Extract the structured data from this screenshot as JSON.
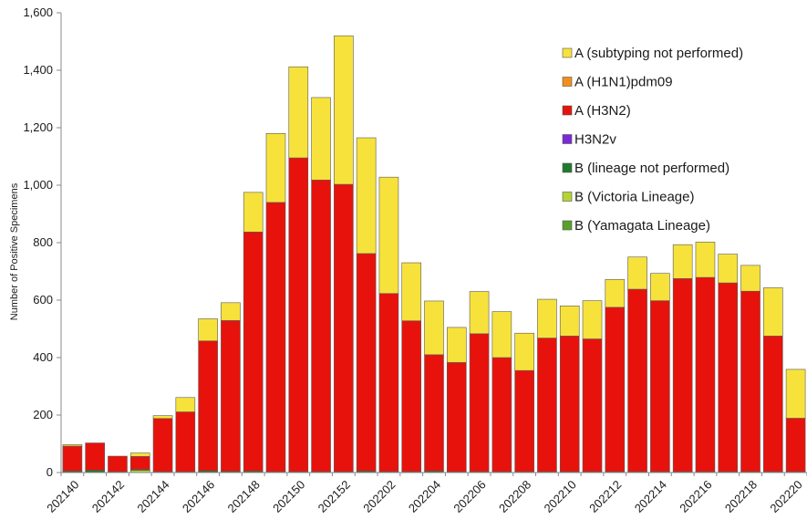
{
  "chart_data": {
    "type": "bar",
    "stacked": true,
    "title": "",
    "xlabel": "",
    "ylabel": "Number of Positive Specimens",
    "ylim": [
      0,
      1600
    ],
    "y_ticks": [
      0,
      200,
      400,
      600,
      800,
      1000,
      1200,
      1400,
      1600
    ],
    "y_tick_labels": [
      "0",
      "200",
      "400",
      "600",
      "800",
      "1,000",
      "1,200",
      "1,400",
      "1,600"
    ],
    "grid": false,
    "legend_position": "top-right",
    "x_tick_labels": [
      "202140",
      "202142",
      "202144",
      "202146",
      "202148",
      "202150",
      "202152",
      "202202",
      "202204",
      "202206",
      "202208",
      "202210",
      "202212",
      "202214",
      "202216",
      "202218",
      "202220"
    ],
    "categories": [
      "202140",
      "202141",
      "202142",
      "202143",
      "202144",
      "202145",
      "202146",
      "202147",
      "202148",
      "202149",
      "202150",
      "202151",
      "202152",
      "202201",
      "202202",
      "202203",
      "202204",
      "202205",
      "202206",
      "202207",
      "202208",
      "202209",
      "202210",
      "202211",
      "202212",
      "202213",
      "202214",
      "202215",
      "202216",
      "202217",
      "202218",
      "202219",
      "202220"
    ],
    "series": [
      {
        "name": "B (Yamagata Lineage)",
        "color": "#5aa02c",
        "values": [
          0,
          0,
          0,
          0,
          0,
          0,
          0,
          0,
          0,
          0,
          0,
          0,
          0,
          0,
          0,
          0,
          0,
          0,
          0,
          0,
          0,
          0,
          0,
          0,
          0,
          0,
          0,
          0,
          0,
          0,
          0,
          0,
          0
        ]
      },
      {
        "name": "B (Victoria Lineage)",
        "color": "#b5d334",
        "values": [
          0,
          0,
          0,
          8,
          0,
          0,
          0,
          0,
          0,
          0,
          0,
          0,
          0,
          0,
          0,
          0,
          0,
          0,
          0,
          0,
          0,
          0,
          0,
          0,
          0,
          0,
          0,
          0,
          0,
          0,
          0,
          0,
          0
        ]
      },
      {
        "name": "B (lineage not performed)",
        "color": "#1f7a2e",
        "values": [
          5,
          8,
          3,
          3,
          3,
          3,
          6,
          4,
          5,
          3,
          3,
          3,
          3,
          5,
          3,
          3,
          5,
          3,
          3,
          3,
          3,
          3,
          3,
          3,
          3,
          3,
          3,
          3,
          3,
          3,
          3,
          3,
          3
        ]
      },
      {
        "name": "H3N2v",
        "color": "#7a2bd6",
        "values": [
          0,
          0,
          0,
          0,
          0,
          0,
          0,
          0,
          0,
          0,
          0,
          0,
          0,
          0,
          0,
          0,
          0,
          0,
          0,
          0,
          0,
          0,
          0,
          0,
          0,
          0,
          0,
          0,
          0,
          0,
          0,
          0,
          0
        ]
      },
      {
        "name": "A (H3N2)",
        "color": "#e8120c",
        "values": [
          87,
          95,
          54,
          45,
          185,
          208,
          452,
          525,
          832,
          937,
          1092,
          1015,
          1000,
          757,
          620,
          525,
          405,
          380,
          480,
          397,
          352,
          465,
          472,
          462,
          572,
          635,
          595,
          672,
          676,
          657,
          628,
          472,
          186
        ]
      },
      {
        "name": "A (H1N1)pdm09",
        "color": "#f0901c",
        "values": [
          0,
          0,
          0,
          0,
          0,
          0,
          0,
          0,
          0,
          0,
          0,
          0,
          0,
          0,
          0,
          0,
          0,
          0,
          0,
          0,
          0,
          0,
          0,
          0,
          0,
          0,
          0,
          0,
          0,
          0,
          0,
          0,
          0
        ]
      },
      {
        "name": "A (subtyping not performed)",
        "color": "#f7e23c",
        "values": [
          5,
          0,
          0,
          12,
          10,
          50,
          77,
          62,
          138,
          240,
          317,
          287,
          517,
          403,
          405,
          202,
          187,
          122,
          147,
          160,
          130,
          135,
          105,
          133,
          97,
          112,
          95,
          118,
          123,
          100,
          90,
          168,
          170
        ]
      }
    ]
  },
  "legend": {
    "items": [
      {
        "label": "A (subtyping not performed)",
        "color": "#f7e23c"
      },
      {
        "label": "A (H1N1)pdm09",
        "color": "#f0901c"
      },
      {
        "label": "A (H3N2)",
        "color": "#e8120c"
      },
      {
        "label": "H3N2v",
        "color": "#7a2bd6"
      },
      {
        "label": "B (lineage not performed)",
        "color": "#1f7a2e"
      },
      {
        "label": "B (Victoria Lineage)",
        "color": "#b5d334"
      },
      {
        "label": "B (Yamagata Lineage)",
        "color": "#5aa02c"
      }
    ]
  }
}
